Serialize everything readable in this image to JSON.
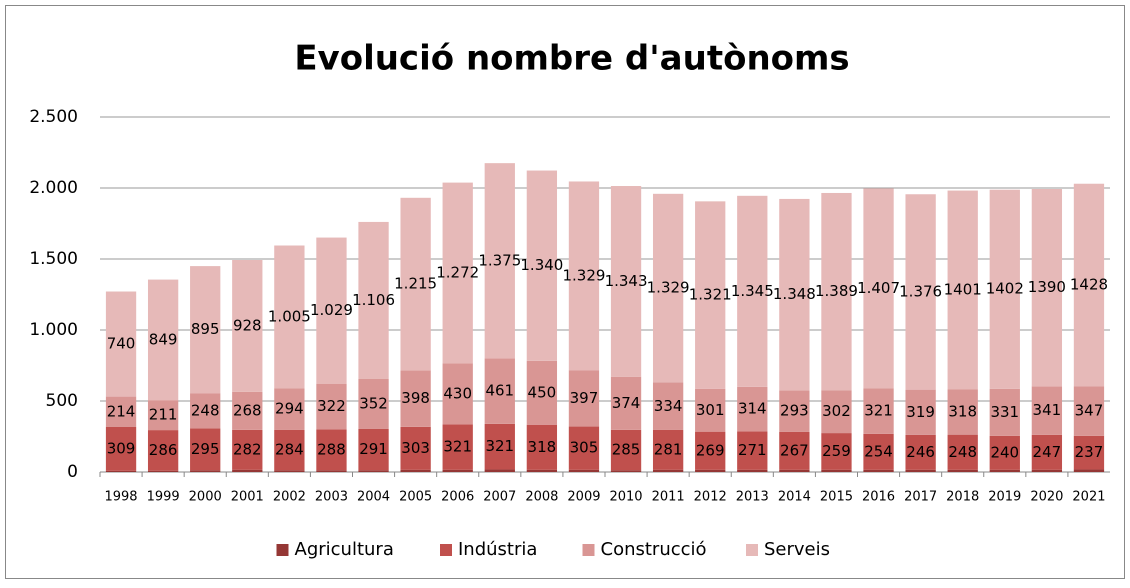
{
  "chart_data": {
    "type": "stacked_bar",
    "title": "Evolució nombre d'autònoms",
    "categories": [
      "1998",
      "1999",
      "2000",
      "2001",
      "2002",
      "2003",
      "2004",
      "2005",
      "2006",
      "2007",
      "2008",
      "2009",
      "2010",
      "2011",
      "2012",
      "2013",
      "2014",
      "2015",
      "2016",
      "2017",
      "2018",
      "2019",
      "2020",
      "2021"
    ],
    "series": [
      {
        "name": "Agricultura",
        "color": "#953735",
        "values": [
          8,
          9,
          12,
          15,
          12,
          12,
          12,
          15,
          15,
          18,
          15,
          15,
          12,
          15,
          15,
          15,
          15,
          15,
          15,
          15,
          15,
          15,
          15,
          18
        ]
      },
      {
        "name": "Indústria",
        "color": "#c0504d",
        "values": [
          309,
          286,
          295,
          282,
          284,
          288,
          291,
          303,
          321,
          321,
          318,
          305,
          285,
          281,
          269,
          271,
          267,
          259,
          254,
          246,
          248,
          240,
          247,
          237
        ]
      },
      {
        "name": "Construcció",
        "color": "#d99694",
        "values": [
          214,
          211,
          248,
          268,
          294,
          322,
          352,
          398,
          430,
          461,
          450,
          397,
          374,
          334,
          301,
          314,
          293,
          302,
          321,
          319,
          318,
          331,
          341,
          347
        ]
      },
      {
        "name": "Serveis",
        "color": "#e6b9b8",
        "values": [
          740,
          849,
          895,
          928,
          1005,
          1029,
          1106,
          1215,
          1272,
          1375,
          1340,
          1329,
          1343,
          1329,
          1321,
          1345,
          1348,
          1389,
          1407,
          1376,
          1401,
          1402,
          1390,
          1428
        ],
        "value_labels": [
          "740",
          "849",
          "895",
          "928",
          "1.005",
          "1.029",
          "1.106",
          "1.215",
          "1.272",
          "1.375",
          "1.340",
          "1.329",
          "1.343",
          "1.329",
          "1.321",
          "1.345",
          "1.348",
          "1.389",
          "1.407",
          "1.376",
          "1401",
          "1402",
          "1390",
          "1428"
        ]
      }
    ],
    "labeled_series": [
      1,
      2,
      3
    ],
    "ylim": [
      0,
      2500
    ],
    "yticks": [
      0,
      500,
      {
        "value": 1000,
        "label": "1.000"
      },
      {
        "value": 1500,
        "label": "1.500"
      },
      {
        "value": 2000,
        "label": "2.000"
      },
      {
        "value": 2500,
        "label": "2.500"
      }
    ],
    "grid": true,
    "legend": "bottom"
  }
}
